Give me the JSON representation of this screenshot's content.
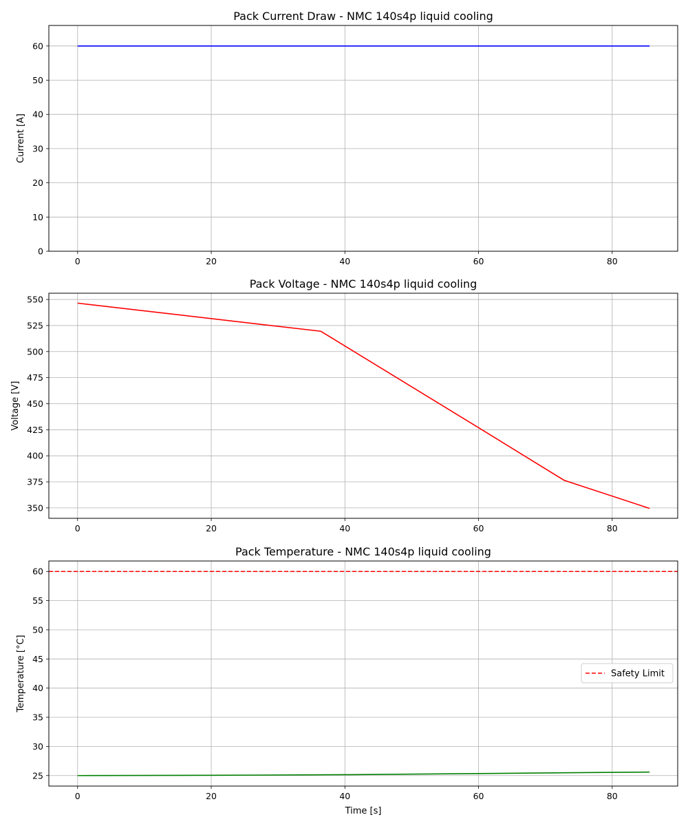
{
  "chart_data": [
    {
      "type": "line",
      "title": "Pack Current Draw - NMC 140s4p liquid cooling",
      "xlabel": "",
      "ylabel": "Current [A]",
      "xlim": [
        -4.3,
        89.8
      ],
      "ylim": [
        0,
        66
      ],
      "xticks": [
        0,
        20,
        40,
        60,
        80
      ],
      "yticks": [
        0,
        10,
        20,
        30,
        40,
        50,
        60
      ],
      "grid": true,
      "series": [
        {
          "color": "#0000ff",
          "style": "solid",
          "x": [
            0,
            85.6
          ],
          "y": [
            60,
            60
          ]
        }
      ]
    },
    {
      "type": "line",
      "title": "Pack Voltage - NMC 140s4p liquid cooling",
      "xlabel": "",
      "ylabel": "Voltage [V]",
      "xlim": [
        -4.3,
        89.8
      ],
      "ylim": [
        340,
        556
      ],
      "xticks": [
        0,
        20,
        40,
        60,
        80
      ],
      "yticks": [
        350,
        375,
        400,
        425,
        450,
        475,
        500,
        525,
        550
      ],
      "grid": true,
      "series": [
        {
          "color": "#ff0000",
          "style": "solid",
          "x": [
            0,
            36.4,
            60,
            72.8,
            85.6
          ],
          "y": [
            546.5,
            519.5,
            427,
            376.5,
            349.5
          ]
        }
      ]
    },
    {
      "type": "line",
      "title": "Pack Temperature - NMC 140s4p liquid cooling",
      "xlabel": "Time [s]",
      "ylabel": "Temperature [°C]",
      "xlim": [
        -4.3,
        89.8
      ],
      "ylim": [
        23.2,
        61.8
      ],
      "xticks": [
        0,
        20,
        40,
        60,
        80
      ],
      "yticks": [
        25,
        30,
        35,
        40,
        45,
        50,
        55,
        60
      ],
      "grid": true,
      "legend_position": "center-right",
      "series": [
        {
          "color": "#008000",
          "style": "solid",
          "x": [
            0,
            20,
            40,
            60,
            80,
            85.6
          ],
          "y": [
            25.0,
            25.05,
            25.15,
            25.35,
            25.55,
            25.6
          ]
        },
        {
          "name": "Safety Limit",
          "color": "#ff0000",
          "style": "dashed",
          "hline": 60
        }
      ]
    }
  ]
}
